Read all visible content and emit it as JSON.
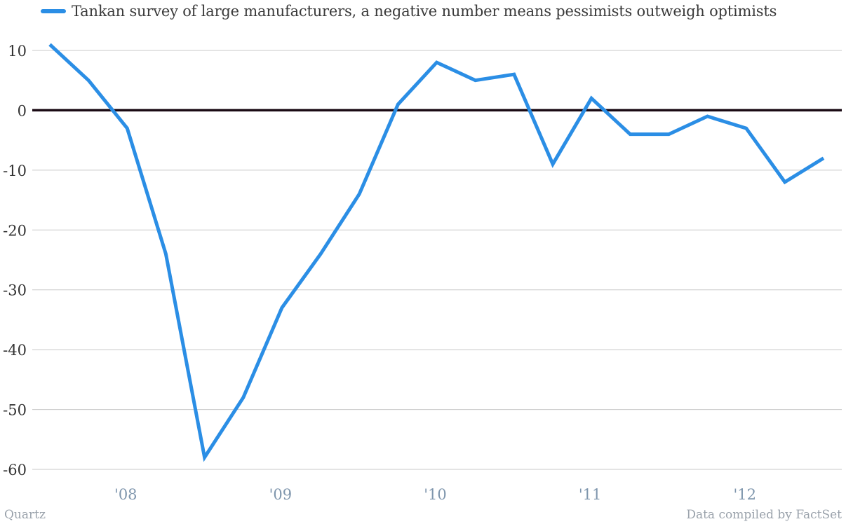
{
  "legend": {
    "label": "Tankan survey of large manufacturers, a negative number means pessimists outweigh optimists"
  },
  "footer": {
    "source_left": "Quartz",
    "source_right": "Data compiled by FactSet"
  },
  "colors": {
    "series": "#2b8ee5",
    "grid": "#c9c9c9",
    "zero_line": "#1a0a14",
    "y_tick": "#333333",
    "x_tick": "#7f96ad"
  },
  "chart_data": {
    "type": "line",
    "title": "",
    "xlabel": "",
    "ylabel": "",
    "ylim": [
      -60,
      10
    ],
    "yticks": [
      10,
      0,
      -10,
      -20,
      -30,
      -40,
      -50,
      -60
    ],
    "xticks": [
      {
        "label": "'08",
        "x": 2008.0
      },
      {
        "label": "'09",
        "x": 2009.0
      },
      {
        "label": "'10",
        "x": 2010.0
      },
      {
        "label": "'11",
        "x": 2011.0
      },
      {
        "label": "'12",
        "x": 2012.0
      }
    ],
    "grid": true,
    "series": [
      {
        "name": "Tankan survey of large manufacturers, a negative number means pessimists outweigh optimists",
        "x": [
          2007.5,
          2007.75,
          2008.0,
          2008.25,
          2008.5,
          2008.75,
          2009.0,
          2009.25,
          2009.5,
          2009.75,
          2010.0,
          2010.25,
          2010.5,
          2010.75,
          2011.0,
          2011.25,
          2011.5,
          2011.75,
          2012.0,
          2012.25,
          2012.5
        ],
        "values": [
          11,
          5,
          -3,
          -24,
          -58,
          -48,
          -33,
          -24,
          -14,
          1,
          8,
          5,
          6,
          -9,
          2,
          -4,
          -4,
          -1,
          -3,
          -12,
          -8
        ]
      }
    ]
  }
}
